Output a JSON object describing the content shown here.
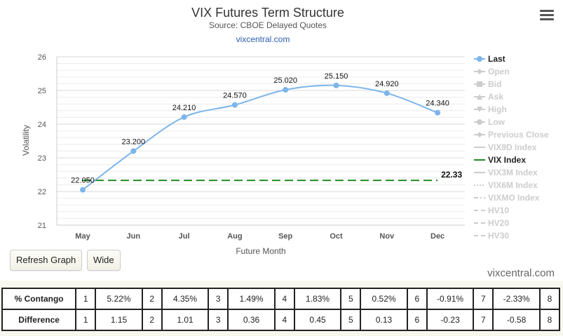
{
  "chart_data": {
    "type": "line",
    "title": "VIX Futures Term Structure",
    "subtitle": "Source: CBOE Delayed Quotes",
    "credit": "vixcentral.com",
    "xlabel": "Future Month",
    "ylabel": "Volatility",
    "categories": [
      "May",
      "Jun",
      "Jul",
      "Aug",
      "Sep",
      "Oct",
      "Nov",
      "Dec"
    ],
    "ylim": [
      21,
      26
    ],
    "yticks": [
      21,
      22,
      23,
      24,
      25,
      26
    ],
    "series": [
      {
        "name": "Last",
        "values": [
          22.05,
          23.2,
          24.21,
          24.57,
          25.02,
          25.15,
          24.92,
          24.34
        ],
        "labels": [
          "22.050",
          "23.200",
          "24.210",
          "24.570",
          "25.020",
          "25.150",
          "24.920",
          "24.340"
        ],
        "color": "#7cb5ec"
      },
      {
        "name": "VIX Index",
        "value": 22.33,
        "label": "22.33",
        "color": "#228b22",
        "style": "dashed"
      }
    ],
    "legend": {
      "placement": "right",
      "items": [
        {
          "name": "Last",
          "active": true,
          "symbol": "circle"
        },
        {
          "name": "Open",
          "active": false,
          "symbol": "diamond"
        },
        {
          "name": "Bid",
          "active": false,
          "symbol": "square"
        },
        {
          "name": "Ask",
          "active": false,
          "symbol": "triangle"
        },
        {
          "name": "High",
          "active": false,
          "symbol": "triangle-down"
        },
        {
          "name": "Low",
          "active": false,
          "symbol": "circle"
        },
        {
          "name": "Previous Close",
          "active": false,
          "symbol": "diamond"
        },
        {
          "name": "VIX9D Index",
          "active": false,
          "symbol": "line"
        },
        {
          "name": "VIX Index",
          "active": true,
          "symbol": "line"
        },
        {
          "name": "VIX3M Index",
          "active": false,
          "symbol": "line"
        },
        {
          "name": "VIX6M Index",
          "active": false,
          "symbol": "dotted"
        },
        {
          "name": "VIXMO Index",
          "active": false,
          "symbol": "dashdot"
        },
        {
          "name": "HV10",
          "active": false,
          "symbol": "dashed"
        },
        {
          "name": "HV20",
          "active": false,
          "symbol": "dashed"
        },
        {
          "name": "HV30",
          "active": false,
          "symbol": "dashed"
        }
      ]
    },
    "grid": true
  },
  "colors": {
    "accent_line": "#7cb5ec",
    "vix_line": "#228b22",
    "inactive_legend": "#cccccc"
  },
  "buttons": {
    "refresh": "Refresh Graph",
    "wide": "Wide"
  },
  "watermark": "vixcentral.com",
  "table": {
    "rows": [
      {
        "label": "% Contango",
        "cells": [
          {
            "idx": "1",
            "val": "5.22%"
          },
          {
            "idx": "2",
            "val": "4.35%"
          },
          {
            "idx": "3",
            "val": "1.49%"
          },
          {
            "idx": "4",
            "val": "1.83%"
          },
          {
            "idx": "5",
            "val": "0.52%"
          },
          {
            "idx": "6",
            "val": "-0.91%"
          },
          {
            "idx": "7",
            "val": "-2.33%"
          },
          {
            "idx": "8",
            "val": ""
          }
        ]
      },
      {
        "label": "Difference",
        "cells": [
          {
            "idx": "1",
            "val": "1.15"
          },
          {
            "idx": "2",
            "val": "1.01"
          },
          {
            "idx": "3",
            "val": "0.36"
          },
          {
            "idx": "4",
            "val": "0.45"
          },
          {
            "idx": "5",
            "val": "0.13"
          },
          {
            "idx": "6",
            "val": "-0.23"
          },
          {
            "idx": "7",
            "val": "-0.58"
          },
          {
            "idx": "8",
            "val": ""
          }
        ]
      }
    ]
  }
}
